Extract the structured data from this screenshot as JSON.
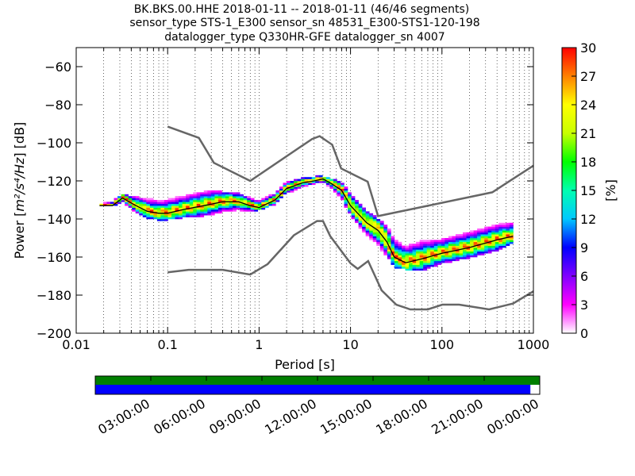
{
  "title_lines": [
    "BK.BKS.00.HHE   2018-01-11 -- 2018-01-11  (46/46 segments)",
    "sensor_type STS-1_E300 sensor_sn 48531_E300-STS1-120-198",
    "datalogger_type Q330HR-GFE datalogger_sn 4007"
  ],
  "chart_data": {
    "type": "heatmap",
    "xlabel": "Period [s]",
    "ylabel_prefix": "Power [",
    "ylabel_units": "m²/s⁴/Hz",
    "ylabel_suffix": "] [dB]",
    "x_scale": "log",
    "xlim": [
      0.01,
      1000
    ],
    "ylim": [
      -200,
      -50
    ],
    "x_ticks": [
      0.01,
      0.1,
      1,
      10,
      100,
      1000
    ],
    "x_tick_labels": [
      "0.01",
      "0.1",
      "1",
      "10",
      "100",
      "1000"
    ],
    "y_ticks": [
      -200,
      -180,
      -160,
      -140,
      -120,
      -100,
      -80,
      -60
    ],
    "y_tick_labels": [
      "−200",
      "−180",
      "−160",
      "−140",
      "−120",
      "−100",
      "−80",
      "−60"
    ],
    "grid": "dotted vertical at log periods",
    "colorbar": {
      "label": "[%]",
      "min": 0,
      "max": 30,
      "ticks": [
        0,
        3,
        6,
        9,
        12,
        15,
        18,
        21,
        24,
        27,
        30
      ],
      "tick_labels": [
        "0",
        "3",
        "6",
        "9",
        "12",
        "15",
        "18",
        "21",
        "24",
        "27",
        "30"
      ],
      "colors": [
        "#ffffff",
        "#ff00ff",
        "#8000ff",
        "#0000ff",
        "#00c8ff",
        "#00ffb0",
        "#00ff00",
        "#c8ff00",
        "#ffff00",
        "#ff8000",
        "#ff0000"
      ]
    },
    "noise_model_high": [
      [
        0.1,
        -91.5
      ],
      [
        0.22,
        -97.4
      ],
      [
        0.32,
        -110.5
      ],
      [
        0.8,
        -120
      ],
      [
        3.8,
        -98
      ],
      [
        4.6,
        -96.5
      ],
      [
        6.3,
        -101
      ],
      [
        7.9,
        -113.5
      ],
      [
        15.4,
        -120.4
      ],
      [
        20,
        -138.5
      ],
      [
        354.8,
        -126
      ],
      [
        1000,
        -112
      ]
    ],
    "noise_model_low": [
      [
        0.1,
        -168
      ],
      [
        0.17,
        -166.7
      ],
      [
        0.4,
        -166.7
      ],
      [
        0.8,
        -169.2
      ],
      [
        1.24,
        -163.7
      ],
      [
        2.4,
        -148.6
      ],
      [
        4.3,
        -141.1
      ],
      [
        5,
        -141.1
      ],
      [
        6,
        -149
      ],
      [
        10,
        -163.3
      ],
      [
        12,
        -166.2
      ],
      [
        15.6,
        -162.1
      ],
      [
        21.9,
        -177.5
      ],
      [
        31.6,
        -185
      ],
      [
        45,
        -187.5
      ],
      [
        70,
        -187.5
      ],
      [
        101,
        -185
      ],
      [
        154,
        -185
      ],
      [
        328,
        -187.5
      ],
      [
        600,
        -184.4
      ],
      [
        1000,
        -178
      ]
    ],
    "mode_curve": [
      [
        0.018,
        -133
      ],
      [
        0.025,
        -133
      ],
      [
        0.032,
        -129
      ],
      [
        0.045,
        -133
      ],
      [
        0.06,
        -136
      ],
      [
        0.08,
        -137
      ],
      [
        0.1,
        -137
      ],
      [
        0.15,
        -135
      ],
      [
        0.25,
        -133
      ],
      [
        0.4,
        -131
      ],
      [
        0.6,
        -131
      ],
      [
        0.8,
        -133
      ],
      [
        1,
        -134
      ],
      [
        1.5,
        -130
      ],
      [
        2,
        -124
      ],
      [
        3,
        -121
      ],
      [
        4,
        -120
      ],
      [
        5,
        -119
      ],
      [
        6,
        -121
      ],
      [
        8,
        -125
      ],
      [
        10,
        -133
      ],
      [
        15,
        -142
      ],
      [
        20,
        -146
      ],
      [
        25,
        -152
      ],
      [
        30,
        -160
      ],
      [
        40,
        -163
      ],
      [
        60,
        -161
      ],
      [
        100,
        -158
      ],
      [
        200,
        -155
      ],
      [
        400,
        -151
      ],
      [
        600,
        -149
      ]
    ],
    "density_band": [
      [
        0.018,
        -132.5,
        -133.5
      ],
      [
        0.025,
        -131,
        -134
      ],
      [
        0.032,
        -127,
        -132
      ],
      [
        0.045,
        -129,
        -137
      ],
      [
        0.06,
        -129,
        -140
      ],
      [
        0.08,
        -130,
        -141
      ],
      [
        0.1,
        -129,
        -141
      ],
      [
        0.15,
        -128,
        -140
      ],
      [
        0.25,
        -126,
        -139
      ],
      [
        0.4,
        -126,
        -137
      ],
      [
        0.6,
        -127,
        -136
      ],
      [
        0.8,
        -129,
        -136
      ],
      [
        1,
        -130,
        -136
      ],
      [
        1.5,
        -127,
        -133
      ],
      [
        2,
        -121,
        -127
      ],
      [
        3,
        -119,
        -124
      ],
      [
        4,
        -118,
        -122
      ],
      [
        5,
        -118,
        -122
      ],
      [
        6,
        -119,
        -124
      ],
      [
        8,
        -121,
        -130
      ],
      [
        10,
        -127,
        -139
      ],
      [
        15,
        -136,
        -149
      ],
      [
        20,
        -140,
        -155
      ],
      [
        25,
        -144,
        -160
      ],
      [
        30,
        -150,
        -166
      ],
      [
        40,
        -152,
        -167
      ],
      [
        60,
        -152,
        -168
      ],
      [
        100,
        -151,
        -164
      ],
      [
        200,
        -147,
        -161
      ],
      [
        400,
        -143,
        -157
      ],
      [
        600,
        -141,
        -153
      ]
    ]
  },
  "timeline": {
    "tick_labels": [
      "03:00:00",
      "06:00:00",
      "09:00:00",
      "12:00:00",
      "15:00:00",
      "18:00:00",
      "21:00:00",
      "00:00:00"
    ],
    "colors": {
      "full": "#007f00",
      "segments": "#0000ff"
    },
    "coverage_fraction": 0.979
  }
}
